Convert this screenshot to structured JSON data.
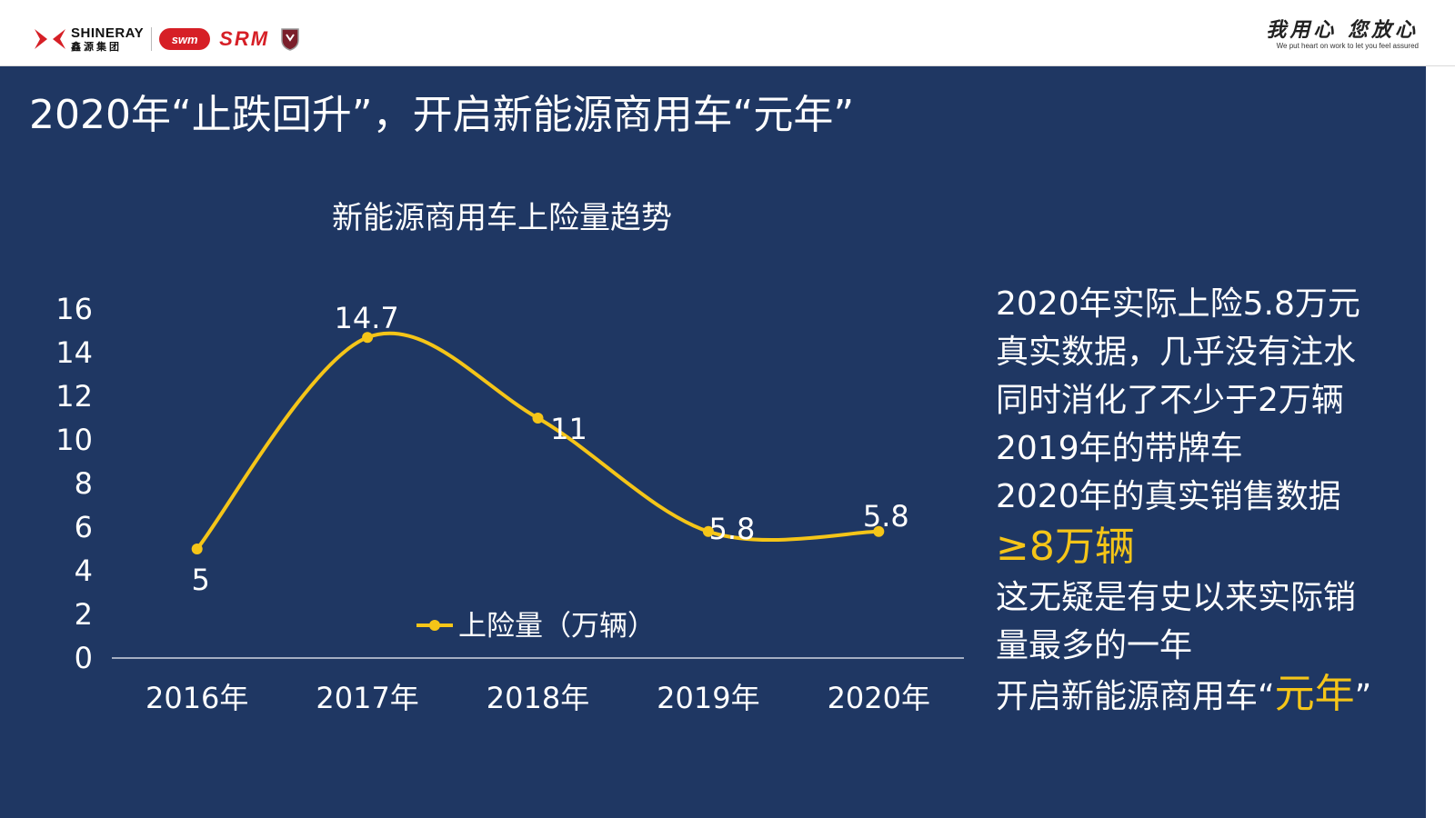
{
  "header": {
    "brand_en": "SHINERAY",
    "brand_cn": "鑫源集团",
    "swm_label": "swm",
    "srm_label": "SRM",
    "slogan_cn": "我用心 您放心",
    "slogan_en": "We put heart on work to let you feel assured"
  },
  "page_title": "2020年“止跌回升”，开启新能源商用车“元年”",
  "colors": {
    "panel": "#1f3763",
    "line": "#f5c518",
    "text": "#ffffff",
    "brand_red": "#d61f26"
  },
  "chart_data": {
    "type": "line",
    "title": "新能源商用车上险量趋势",
    "categories": [
      "2016年",
      "2017年",
      "2018年",
      "2019年",
      "2020年"
    ],
    "series": [
      {
        "name": "上险量（万辆）",
        "values": [
          5,
          14.7,
          11,
          5.8,
          5.8
        ],
        "color": "#f5c518"
      }
    ],
    "data_labels": [
      "5",
      "14.7",
      "11",
      "5.8",
      "5.8"
    ],
    "yticks": [
      "0",
      "2",
      "4",
      "6",
      "8",
      "10",
      "12",
      "14",
      "16"
    ],
    "ylim": [
      0,
      16
    ],
    "grid": false,
    "legend": "bottom-center",
    "smooth": true
  },
  "commentary": {
    "lines": [
      "2020年实际上险5.8万元",
      "真实数据，几乎没有注水",
      "同时消化了不少于2万辆",
      "2019年的带牌车",
      "2020年的真实销售数据"
    ],
    "highlight": "≥8万辆",
    "lines2": [
      "这无疑是有史以来实际销",
      "量最多的一年"
    ],
    "last_prefix": "开启新能源商用车“",
    "last_accent": "元年",
    "last_suffix": "”"
  }
}
